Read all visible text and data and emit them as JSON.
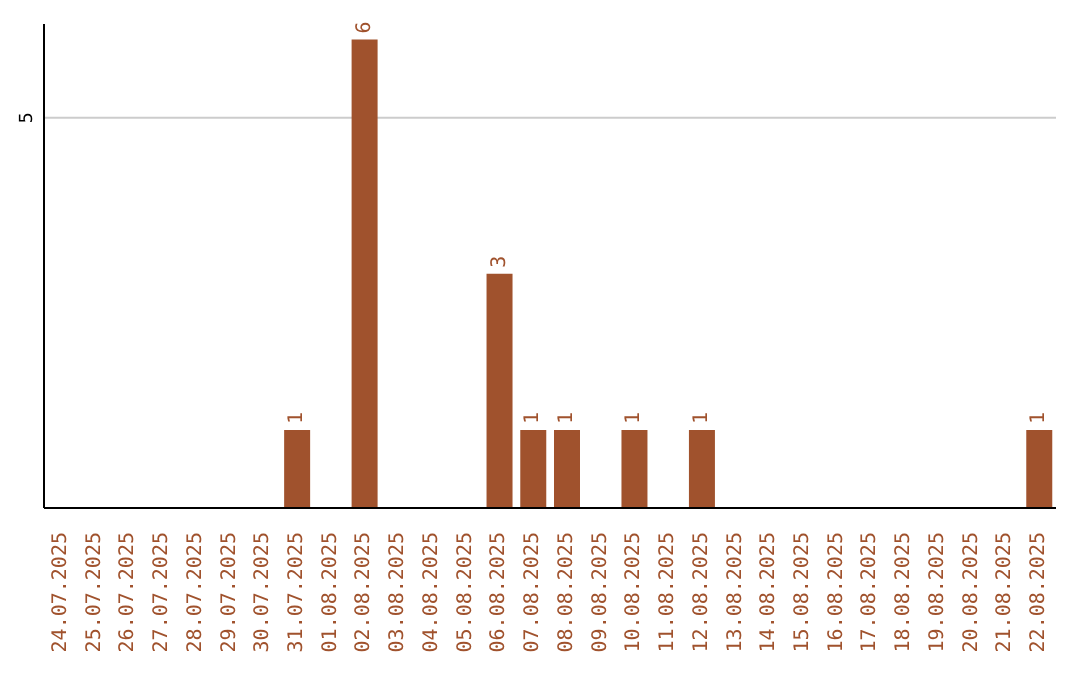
{
  "chart_data": {
    "type": "bar",
    "categories": [
      "24.07.2025",
      "25.07.2025",
      "26.07.2025",
      "27.07.2025",
      "28.07.2025",
      "29.07.2025",
      "30.07.2025",
      "31.07.2025",
      "01.08.2025",
      "02.08.2025",
      "03.08.2025",
      "04.08.2025",
      "05.08.2025",
      "06.08.2025",
      "07.08.2025",
      "08.08.2025",
      "09.08.2025",
      "10.08.2025",
      "11.08.2025",
      "12.08.2025",
      "13.08.2025",
      "14.08.2025",
      "15.08.2025",
      "16.08.2025",
      "17.08.2025",
      "18.08.2025",
      "19.08.2025",
      "20.08.2025",
      "21.08.2025",
      "22.08.2025"
    ],
    "values": [
      0,
      0,
      0,
      0,
      0,
      0,
      0,
      1,
      0,
      6,
      0,
      0,
      0,
      3,
      1,
      1,
      0,
      1,
      0,
      1,
      0,
      0,
      0,
      0,
      0,
      0,
      0,
      0,
      0,
      1
    ],
    "value_labels": [
      null,
      null,
      null,
      null,
      null,
      null,
      null,
      "1",
      null,
      "6",
      null,
      null,
      null,
      "3",
      "1",
      "1",
      null,
      "1",
      null,
      "1",
      null,
      null,
      null,
      null,
      null,
      null,
      null,
      null,
      null,
      "1"
    ],
    "color": "#a0522d",
    "ylim": [
      0,
      6.2
    ],
    "yticks": [
      5
    ],
    "grid": "y"
  }
}
